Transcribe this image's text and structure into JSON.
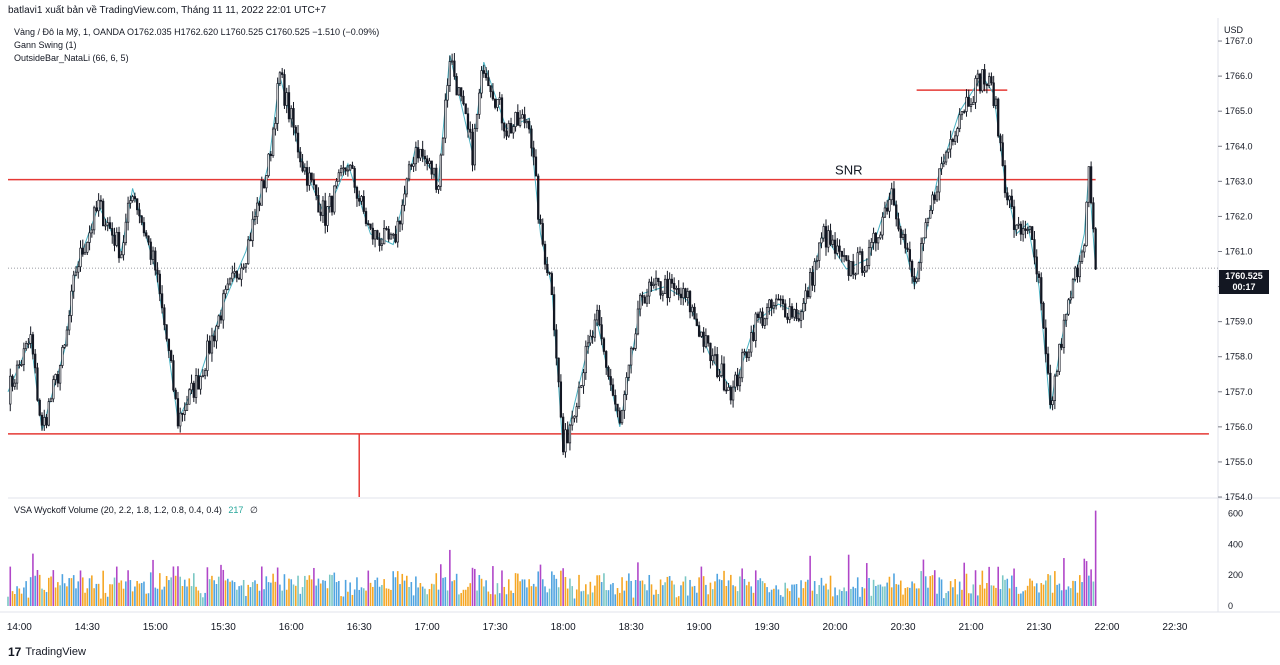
{
  "header": {
    "publisher": "batlavi1 xuất bản về TradingView.com, Tháng 11 11, 2022 22:01 UTC+7"
  },
  "legend": {
    "symbol_line": "Vàng / Đô la Mỹ, 1, OANDA  O1762.035  H1762.620  L1760.525  C1760.525  −1.510 (−0.09%)",
    "indicators": [
      "Gann Swing (1)",
      "OutsideBar_NataLi (66, 6, 5)"
    ]
  },
  "volume_legend": {
    "title": "VSA Wyckoff Volume (20, 2.2, 1.8, 1.2, 0.8, 0.4, 0.4)",
    "value": "217",
    "extra": "∅"
  },
  "price_axis": {
    "currency": "USD",
    "last_price": "1760.525",
    "countdown": "00:17"
  },
  "annotations": {
    "snr_label": "SNR"
  },
  "footer": {
    "logo": "17",
    "brand": "TradingView"
  },
  "colors": {
    "candle": "#131722",
    "swing_line": "#4bb3c4",
    "level_line": "#e53935",
    "vol_orange": "#f5a623",
    "vol_blue": "#4fa3e0",
    "vol_purple": "#b046c8",
    "vol_teal": "#7ac7c4"
  },
  "chart_data": [
    {
      "type": "line",
      "title": "Vàng / Đô la Mỹ, 1, OANDA",
      "x": [
        "14:00",
        "14:30",
        "15:00",
        "15:30",
        "16:00",
        "16:30",
        "17:00",
        "17:30",
        "18:00",
        "18:30",
        "19:00",
        "19:30",
        "20:00",
        "20:30",
        "21:00",
        "21:30",
        "22:00",
        "22:30"
      ],
      "ylim": [
        1754.0,
        1767.6
      ],
      "y_ticks": [
        1754.0,
        1755.0,
        1756.0,
        1757.0,
        1758.0,
        1759.0,
        1760.0,
        1761.0,
        1762.0,
        1763.0,
        1764.0,
        1765.0,
        1766.0,
        1767.0
      ],
      "anchor_points": [
        {
          "t": "13:55",
          "p": 1757.0
        },
        {
          "t": "14:05",
          "p": 1758.5
        },
        {
          "t": "14:10",
          "p": 1755.9
        },
        {
          "t": "14:20",
          "p": 1758.2
        },
        {
          "t": "14:25",
          "p": 1760.5
        },
        {
          "t": "14:35",
          "p": 1762.3
        },
        {
          "t": "14:45",
          "p": 1761.0
        },
        {
          "t": "14:50",
          "p": 1762.8
        },
        {
          "t": "15:00",
          "p": 1760.5
        },
        {
          "t": "15:05",
          "p": 1758.5
        },
        {
          "t": "15:10",
          "p": 1756.2
        },
        {
          "t": "15:20",
          "p": 1757.5
        },
        {
          "t": "15:30",
          "p": 1759.5
        },
        {
          "t": "15:40",
          "p": 1761.0
        },
        {
          "t": "15:50",
          "p": 1763.5
        },
        {
          "t": "15:55",
          "p": 1766.0
        },
        {
          "t": "16:05",
          "p": 1763.5
        },
        {
          "t": "16:15",
          "p": 1762.0
        },
        {
          "t": "16:25",
          "p": 1763.5
        },
        {
          "t": "16:35",
          "p": 1761.5
        },
        {
          "t": "16:45",
          "p": 1761.2
        },
        {
          "t": "16:55",
          "p": 1764.0
        },
        {
          "t": "17:05",
          "p": 1763.0
        },
        {
          "t": "17:10",
          "p": 1766.6
        },
        {
          "t": "17:20",
          "p": 1763.8
        },
        {
          "t": "17:25",
          "p": 1766.4
        },
        {
          "t": "17:35",
          "p": 1764.5
        },
        {
          "t": "17:45",
          "p": 1764.8
        },
        {
          "t": "17:50",
          "p": 1761.5
        },
        {
          "t": "17:55",
          "p": 1760.0
        },
        {
          "t": "18:00",
          "p": 1755.3
        },
        {
          "t": "18:10",
          "p": 1758.0
        },
        {
          "t": "18:15",
          "p": 1759.0
        },
        {
          "t": "18:25",
          "p": 1756.0
        },
        {
          "t": "18:35",
          "p": 1759.8
        },
        {
          "t": "18:45",
          "p": 1760.0
        },
        {
          "t": "18:55",
          "p": 1759.6
        },
        {
          "t": "19:05",
          "p": 1758.0
        },
        {
          "t": "19:15",
          "p": 1757.0
        },
        {
          "t": "19:25",
          "p": 1759.0
        },
        {
          "t": "19:35",
          "p": 1759.5
        },
        {
          "t": "19:45",
          "p": 1759.2
        },
        {
          "t": "19:55",
          "p": 1761.5
        },
        {
          "t": "20:05",
          "p": 1760.5
        },
        {
          "t": "20:15",
          "p": 1760.8
        },
        {
          "t": "20:25",
          "p": 1762.8
        },
        {
          "t": "20:35",
          "p": 1760.0
        },
        {
          "t": "20:45",
          "p": 1763.0
        },
        {
          "t": "20:55",
          "p": 1765.0
        },
        {
          "t": "21:05",
          "p": 1766.0
        },
        {
          "t": "21:10",
          "p": 1765.5
        },
        {
          "t": "21:15",
          "p": 1763.0
        },
        {
          "t": "21:20",
          "p": 1761.5
        },
        {
          "t": "21:25",
          "p": 1761.8
        },
        {
          "t": "21:30",
          "p": 1760.0
        },
        {
          "t": "21:35",
          "p": 1756.5
        },
        {
          "t": "21:40",
          "p": 1758.5
        },
        {
          "t": "21:45",
          "p": 1760.0
        },
        {
          "t": "21:50",
          "p": 1761.5
        },
        {
          "t": "21:52",
          "p": 1763.2
        },
        {
          "t": "21:55",
          "p": 1760.5
        }
      ],
      "levels": [
        {
          "price": 1763.05,
          "from": "13:55",
          "to": "21:55"
        },
        {
          "price": 1765.6,
          "from": "20:36",
          "to": "21:16"
        },
        {
          "price": 1755.8,
          "from": "13:55",
          "to": "22:45"
        }
      ],
      "vertical_marker": {
        "t": "16:30",
        "from": 1755.8,
        "to": 1754.0
      }
    },
    {
      "type": "bar",
      "title": "VSA Wyckoff Volume (20, 2.2, 1.8, 1.2, 0.8, 0.4, 0.4)",
      "ylim": [
        0,
        650
      ],
      "y_ticks": [
        0,
        200,
        400,
        600
      ],
      "max_bar": 620,
      "last_value": 217
    }
  ]
}
